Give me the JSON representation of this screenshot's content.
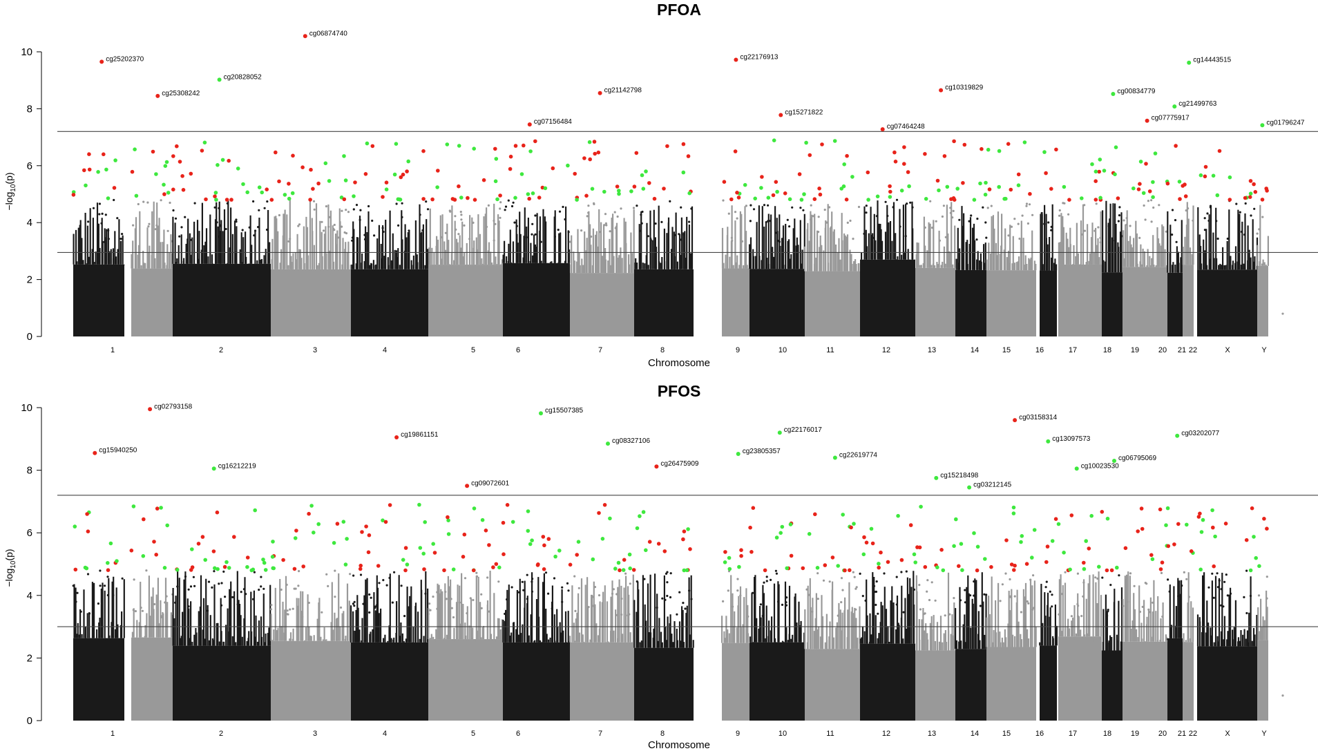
{
  "chart_data": [
    {
      "type": "scatter",
      "subtype": "manhattan",
      "title": "PFOA",
      "xlabel": "Chromosome",
      "ylabel_base": "−log",
      "ylabel_sub": "10",
      "ylabel_rest": "(p)",
      "ylim": [
        0,
        10.6
      ],
      "yticks": [
        0,
        2,
        4,
        6,
        8,
        10
      ],
      "threshold_lines": [
        7.2,
        2.95
      ],
      "chromosomes": [
        "1",
        "2",
        "3",
        "4",
        "5",
        "6",
        "7",
        "8",
        "9",
        "10",
        "11",
        "12",
        "13",
        "14",
        "15",
        "16",
        "17",
        "18",
        "19",
        "20",
        "21",
        "22",
        "X",
        "Y"
      ],
      "series_colors": {
        "odd": "#1a1a1a",
        "even": "#999999",
        "hit_red": "#e8231a",
        "hit_green": "#3ee83e"
      },
      "annotations": [
        {
          "label": "cg25202370",
          "chr": "1",
          "y": 9.65,
          "color": "red"
        },
        {
          "label": "cg25308242",
          "chr": "2",
          "y": 8.45,
          "color": "red"
        },
        {
          "label": "cg20828052",
          "chr": "3",
          "y": 9.02,
          "color": "green"
        },
        {
          "label": "cg06874740",
          "chr": "4",
          "y": 10.55,
          "color": "red"
        },
        {
          "label": "cg07156484",
          "chr": "7",
          "y": 7.45,
          "color": "red"
        },
        {
          "label": "cg21142798",
          "chr": "8",
          "y": 8.55,
          "color": "red"
        },
        {
          "label": "cg22176913",
          "chr": "10",
          "y": 9.72,
          "color": "red"
        },
        {
          "label": "cg15271822",
          "chr": "11",
          "y": 7.78,
          "color": "red"
        },
        {
          "label": "cg07464248",
          "chr": "13",
          "y": 7.28,
          "color": "red"
        },
        {
          "label": "cg10319829",
          "chr": "14",
          "y": 8.65,
          "color": "red"
        },
        {
          "label": "cg00834779",
          "chr": "19",
          "y": 8.52,
          "color": "green"
        },
        {
          "label": "cg07775917",
          "chr": "20",
          "y": 7.58,
          "color": "red"
        },
        {
          "label": "cg21499763",
          "chr": "21",
          "y": 8.08,
          "color": "green"
        },
        {
          "label": "cg14443515",
          "chr": "22",
          "y": 9.62,
          "color": "green"
        },
        {
          "label": "cg01796247",
          "chr": "Y",
          "y": 7.42,
          "color": "green"
        }
      ]
    },
    {
      "type": "scatter",
      "subtype": "manhattan",
      "title": "PFOS",
      "xlabel": "Chromosome",
      "ylabel_base": "−log",
      "ylabel_sub": "10",
      "ylabel_rest": "(p)",
      "ylim": [
        0,
        10.1
      ],
      "yticks": [
        0,
        2,
        4,
        6,
        8,
        10
      ],
      "threshold_lines": [
        7.2,
        3.0
      ],
      "chromosomes": [
        "1",
        "2",
        "3",
        "4",
        "5",
        "6",
        "7",
        "8",
        "9",
        "10",
        "11",
        "12",
        "13",
        "14",
        "15",
        "16",
        "17",
        "18",
        "19",
        "20",
        "21",
        "22",
        "X",
        "Y"
      ],
      "series_colors": {
        "odd": "#1a1a1a",
        "even": "#999999",
        "hit_red": "#e8231a",
        "hit_green": "#3ee83e"
      },
      "annotations": [
        {
          "label": "cg15940250",
          "chr": "1",
          "y": 8.55,
          "color": "red"
        },
        {
          "label": "cg02793158",
          "chr": "2",
          "y": 9.95,
          "color": "red"
        },
        {
          "label": "cg16212219",
          "chr": "3",
          "y": 8.05,
          "color": "green"
        },
        {
          "label": "cg19861151",
          "chr": "5",
          "y": 9.05,
          "color": "red"
        },
        {
          "label": "cg09072601",
          "chr": "6",
          "y": 7.5,
          "color": "red"
        },
        {
          "label": "cg15507385",
          "chr": "7",
          "y": 9.82,
          "color": "green"
        },
        {
          "label": "cg08327106",
          "chr": "8",
          "y": 8.85,
          "color": "green"
        },
        {
          "label": "cg26475909",
          "chr": "9",
          "y": 8.12,
          "color": "red"
        },
        {
          "label": "cg23805357",
          "chr": "10",
          "y": 8.52,
          "color": "green"
        },
        {
          "label": "cg22176017",
          "chr": "11",
          "y": 9.2,
          "color": "green"
        },
        {
          "label": "cg22619774",
          "chr": "12",
          "y": 8.4,
          "color": "green"
        },
        {
          "label": "cg15218498",
          "chr": "14",
          "y": 7.75,
          "color": "green"
        },
        {
          "label": "cg03212145",
          "chr": "15",
          "y": 7.45,
          "color": "green"
        },
        {
          "label": "cg03158314",
          "chr": "16",
          "y": 9.6,
          "color": "red"
        },
        {
          "label": "cg13097573",
          "chr": "17",
          "y": 8.92,
          "color": "green"
        },
        {
          "label": "cg10023530",
          "chr": "18",
          "y": 8.05,
          "color": "green"
        },
        {
          "label": "cg06795069",
          "chr": "19",
          "y": 8.3,
          "color": "green"
        },
        {
          "label": "cg03202077",
          "chr": "21",
          "y": 9.1,
          "color": "green"
        }
      ]
    }
  ]
}
